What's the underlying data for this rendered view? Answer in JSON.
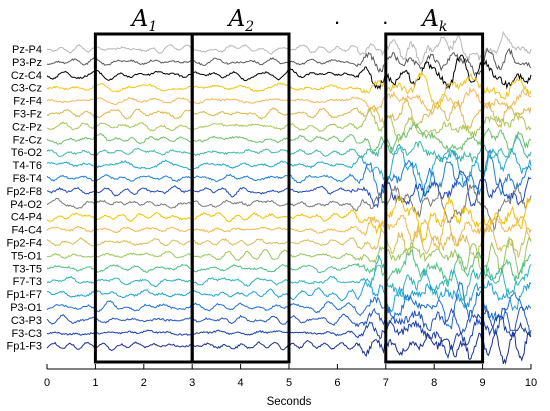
{
  "chart_data": {
    "type": "line",
    "xlabel": "Seconds",
    "xlim": [
      0,
      10
    ],
    "xticks": [
      "0",
      "1",
      "2",
      "3",
      "4",
      "5",
      "6",
      "7",
      "8",
      "9",
      "10"
    ],
    "grid": false,
    "channels": [
      {
        "name": "Pz-P4",
        "color": "#b8b8b8"
      },
      {
        "name": "P3-Pz",
        "color": "#5a5a5a"
      },
      {
        "name": "Cz-C4",
        "color": "#000000"
      },
      {
        "name": "C3-Cz",
        "color": "#f0c419"
      },
      {
        "name": "Fz-F4",
        "color": "#f2b95a"
      },
      {
        "name": "F3-Fz",
        "color": "#d9b74a"
      },
      {
        "name": "Cz-Pz",
        "color": "#a8c65a"
      },
      {
        "name": "Fz-Cz",
        "color": "#6fbf6a"
      },
      {
        "name": "T6-O2",
        "color": "#3fb6a8"
      },
      {
        "name": "T4-T6",
        "color": "#24a9c9"
      },
      {
        "name": "F8-T4",
        "color": "#1f7fd0"
      },
      {
        "name": "Fp2-F8",
        "color": "#2049b8"
      },
      {
        "name": "P4-O2",
        "color": "#7a7a7a"
      },
      {
        "name": "C4-P4",
        "color": "#f2c200"
      },
      {
        "name": "F4-C4",
        "color": "#f0b84a"
      },
      {
        "name": "Fp2-F4",
        "color": "#d9bb55"
      },
      {
        "name": "T5-O1",
        "color": "#9cc45a"
      },
      {
        "name": "T3-T5",
        "color": "#4fbf84"
      },
      {
        "name": "F7-T3",
        "color": "#2cb2bf"
      },
      {
        "name": "Fp1-F7",
        "color": "#1fa1d6"
      },
      {
        "name": "P3-O1",
        "color": "#1f6fd0"
      },
      {
        "name": "C3-P3",
        "color": "#2353c0"
      },
      {
        "name": "F3-C3",
        "color": "#1b3fa8"
      },
      {
        "name": "Fp1-F3",
        "color": "#1b2f8c"
      }
    ],
    "windows": [
      {
        "letter": "A",
        "sub": "1",
        "start": 1,
        "end": 3
      },
      {
        "letter": "A",
        "sub": "2",
        "start": 3,
        "end": 5
      },
      {
        "letter": "A",
        "sub": "k",
        "start": 7,
        "end": 9
      }
    ],
    "ellipsis": ". . ."
  }
}
